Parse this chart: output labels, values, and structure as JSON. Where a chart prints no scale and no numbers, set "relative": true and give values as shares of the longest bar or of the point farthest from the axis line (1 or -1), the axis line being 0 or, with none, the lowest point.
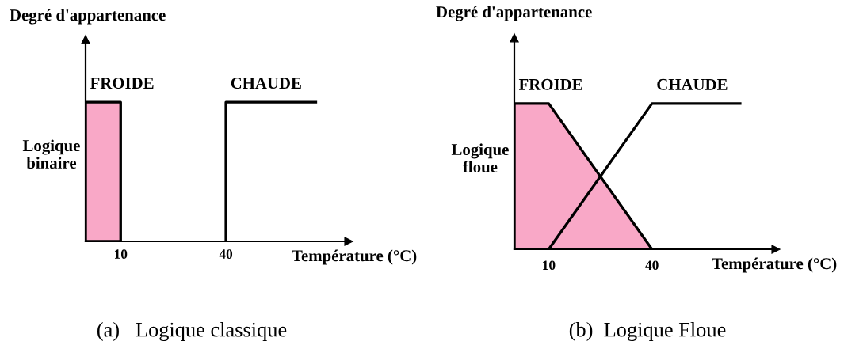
{
  "chart_data": [
    {
      "type": "line",
      "title": "(a)   Logique classique",
      "xlabel": "Température (°C)",
      "ylabel": "Degré d'appartenance",
      "annotations": [
        "Logique\nbinaire"
      ],
      "relative": true,
      "xlim": [
        0,
        75
      ],
      "xticks": [
        10,
        40
      ],
      "tick_labels": "x",
      "legend": false,
      "grid": false,
      "line_style": "solid",
      "series": [
        {
          "name": "FROIDE",
          "type": "area",
          "color": "#f9a8c7",
          "x": [
            0,
            10,
            10
          ],
          "values": [
            1,
            1,
            0
          ]
        },
        {
          "name": "CHAUDE",
          "color": "#000000",
          "x": [
            40,
            40,
            66
          ],
          "values": [
            0,
            1,
            1
          ]
        }
      ]
    },
    {
      "type": "line",
      "title": "(b)  Logique Floue",
      "xlabel": "Température (°C)",
      "ylabel": "Degré d'appartenance",
      "annotations": [
        "Logique\nfloue"
      ],
      "relative": true,
      "xlim": [
        0,
        76
      ],
      "xticks": [
        10,
        40
      ],
      "tick_labels": "x",
      "legend": false,
      "grid": false,
      "line_style": "solid",
      "series": [
        {
          "name": "FROIDE",
          "type": "area",
          "color": "#f9a8c7",
          "x": [
            0,
            10,
            40
          ],
          "values": [
            1,
            1,
            0
          ]
        },
        {
          "name": "CHAUDE",
          "color": "#000000",
          "x": [
            10,
            40,
            66
          ],
          "values": [
            0,
            1,
            1
          ]
        }
      ]
    }
  ]
}
